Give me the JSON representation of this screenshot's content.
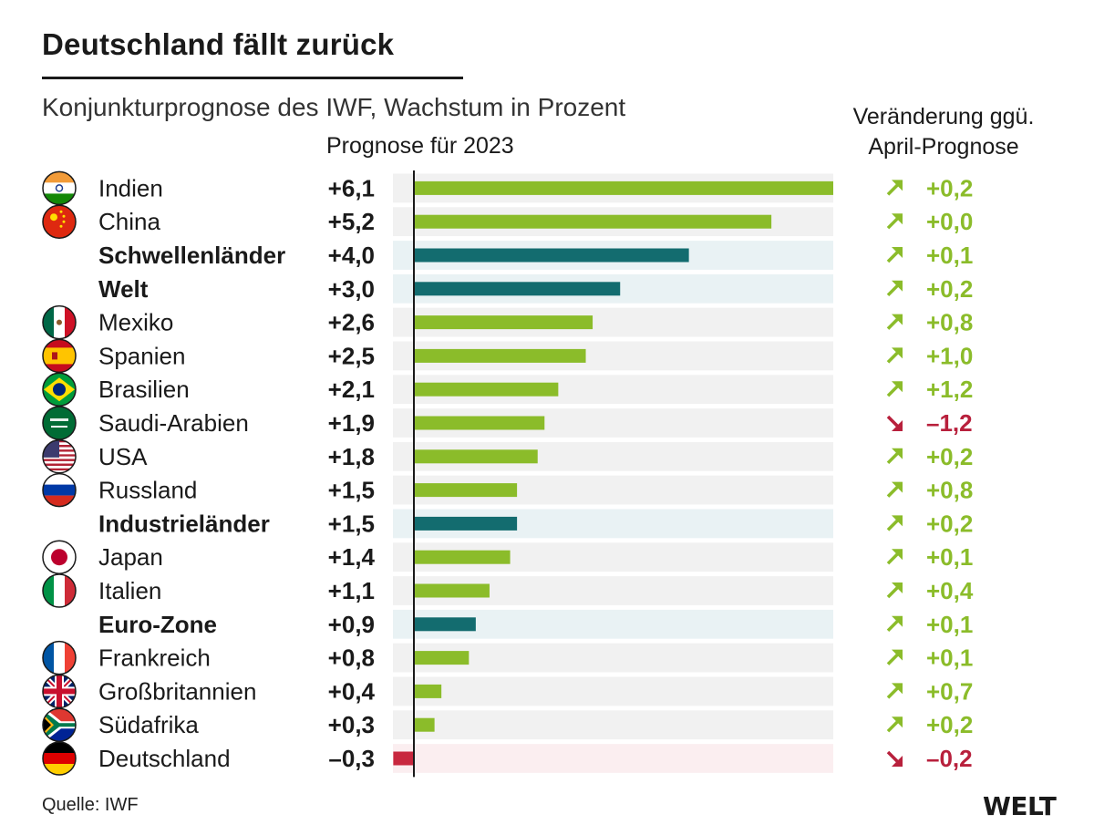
{
  "title": "Deutschland fällt zurück",
  "subtitle": "Konjunkturprognose des IWF, Wachstum in Prozent",
  "source": "Quelle: IWF",
  "logo": "WELT",
  "colors": {
    "country_bar": "#8bbc2a",
    "group_bar": "#136c6f",
    "negative_bar": "#c8283f",
    "row_bg": "#f1f1f1",
    "group_row_bg": "#e9f2f4",
    "negative_row_bg": "#fbeef0",
    "up_arrow": "#8bbc2a",
    "down_arrow": "#b8203c"
  },
  "chart_data": {
    "type": "bar",
    "orientation": "horizontal",
    "title": "Deutschland fällt zurück",
    "subtitle": "Konjunkturprognose des IWF, Wachstum in Prozent",
    "value_column_label": "Prognose für 2023",
    "change_column_label": [
      "Veränderung ggü.",
      "April-Prognose"
    ],
    "xlim": [
      -0.3,
      6.1
    ],
    "rows": [
      {
        "label": "Indien",
        "flag": "india-flag-icon",
        "group": false,
        "value": 6.1,
        "value_label": "+6,1",
        "change": 0.2,
        "change_label": "+0,2"
      },
      {
        "label": "China",
        "flag": "china-flag-icon",
        "group": false,
        "value": 5.2,
        "value_label": "+5,2",
        "change": 0.0,
        "change_label": "+0,0"
      },
      {
        "label": "Schwellenländer",
        "flag": "",
        "group": true,
        "value": 4.0,
        "value_label": "+4,0",
        "change": 0.1,
        "change_label": "+0,1"
      },
      {
        "label": "Welt",
        "flag": "",
        "group": true,
        "value": 3.0,
        "value_label": "+3,0",
        "change": 0.2,
        "change_label": "+0,2"
      },
      {
        "label": "Mexiko",
        "flag": "mexico-flag-icon",
        "group": false,
        "value": 2.6,
        "value_label": "+2,6",
        "change": 0.8,
        "change_label": "+0,8"
      },
      {
        "label": "Spanien",
        "flag": "spain-flag-icon",
        "group": false,
        "value": 2.5,
        "value_label": "+2,5",
        "change": 1.0,
        "change_label": "+1,0"
      },
      {
        "label": "Brasilien",
        "flag": "brazil-flag-icon",
        "group": false,
        "value": 2.1,
        "value_label": "+2,1",
        "change": 1.2,
        "change_label": "+1,2"
      },
      {
        "label": "Saudi-Arabien",
        "flag": "saudi-arabia-flag-icon",
        "group": false,
        "value": 1.9,
        "value_label": "+1,9",
        "change": -1.2,
        "change_label": "–1,2"
      },
      {
        "label": "USA",
        "flag": "usa-flag-icon",
        "group": false,
        "value": 1.8,
        "value_label": "+1,8",
        "change": 0.2,
        "change_label": "+0,2"
      },
      {
        "label": "Russland",
        "flag": "russia-flag-icon",
        "group": false,
        "value": 1.5,
        "value_label": "+1,5",
        "change": 0.8,
        "change_label": "+0,8"
      },
      {
        "label": "Industrieländer",
        "flag": "",
        "group": true,
        "value": 1.5,
        "value_label": "+1,5",
        "change": 0.2,
        "change_label": "+0,2"
      },
      {
        "label": "Japan",
        "flag": "japan-flag-icon",
        "group": false,
        "value": 1.4,
        "value_label": "+1,4",
        "change": 0.1,
        "change_label": "+0,1"
      },
      {
        "label": "Italien",
        "flag": "italy-flag-icon",
        "group": false,
        "value": 1.1,
        "value_label": "+1,1",
        "change": 0.4,
        "change_label": "+0,4"
      },
      {
        "label": "Euro-Zone",
        "flag": "",
        "group": true,
        "value": 0.9,
        "value_label": "+0,9",
        "change": 0.1,
        "change_label": "+0,1"
      },
      {
        "label": "Frankreich",
        "flag": "france-flag-icon",
        "group": false,
        "value": 0.8,
        "value_label": "+0,8",
        "change": 0.1,
        "change_label": "+0,1"
      },
      {
        "label": "Großbritannien",
        "flag": "uk-flag-icon",
        "group": false,
        "value": 0.4,
        "value_label": "+0,4",
        "change": 0.7,
        "change_label": "+0,7"
      },
      {
        "label": "Südafrika",
        "flag": "south-africa-flag-icon",
        "group": false,
        "value": 0.3,
        "value_label": "+0,3",
        "change": 0.2,
        "change_label": "+0,2"
      },
      {
        "label": "Deutschland",
        "flag": "germany-flag-icon",
        "group": false,
        "value": -0.3,
        "value_label": "–0,3",
        "change": -0.2,
        "change_label": "–0,2"
      }
    ]
  }
}
